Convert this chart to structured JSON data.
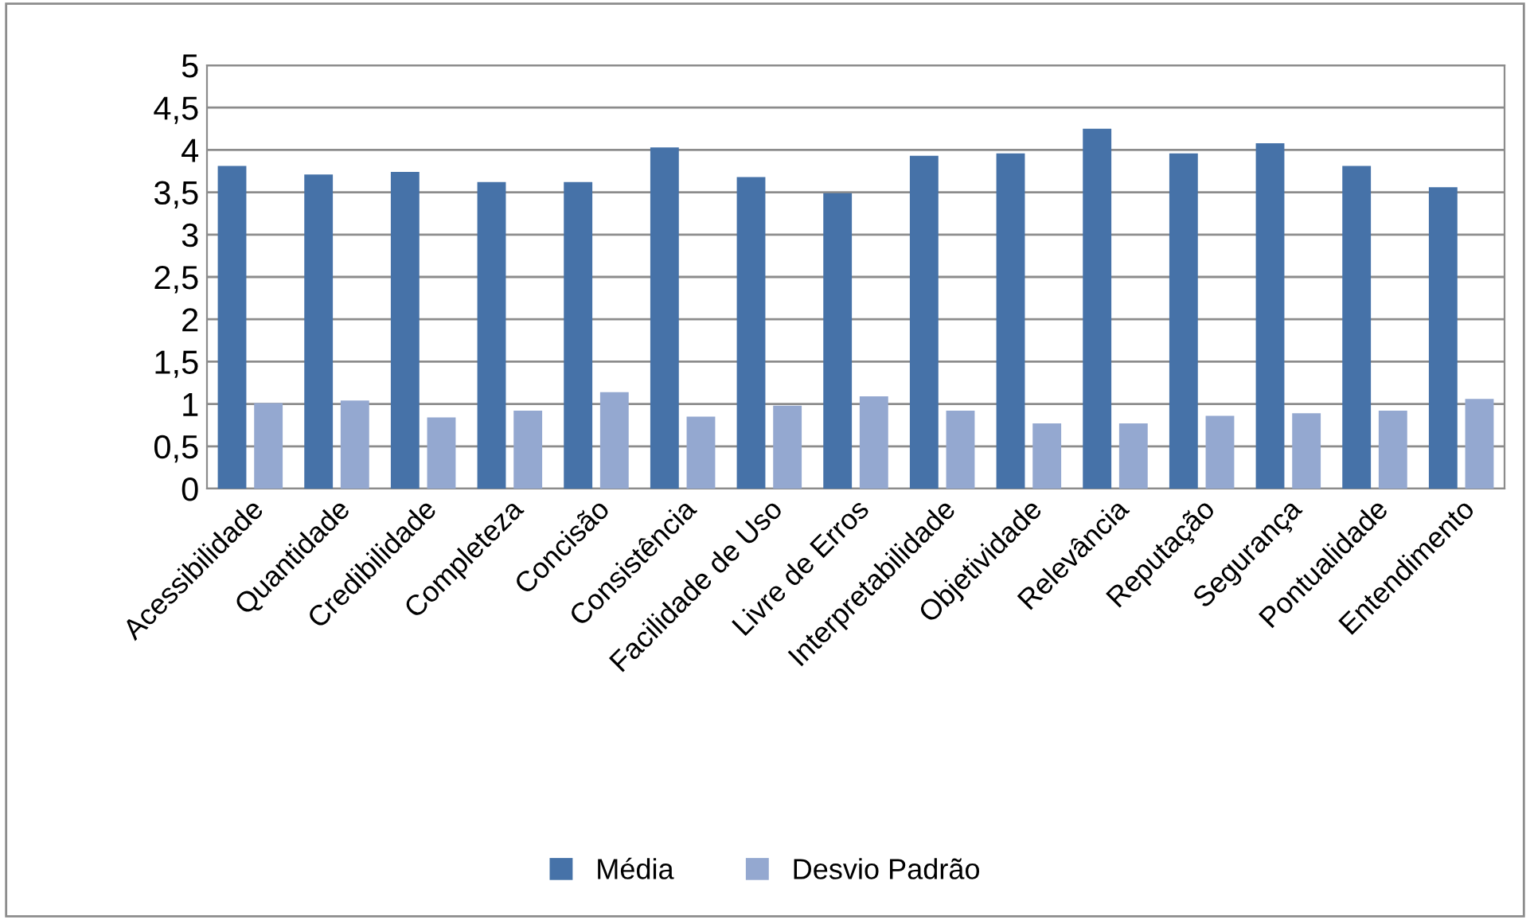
{
  "chart_data": {
    "type": "bar",
    "categories": [
      "Acessibilidade",
      "Quantidade",
      "Credibilidade",
      "Completeza",
      "Concisão",
      "Consistência",
      "Facilidade de Uso",
      "Livre de Erros",
      "Interpretabilidade",
      "Objetividade",
      "Relevância",
      "Reputação",
      "Segurança",
      "Pontualidade",
      "Entendimento"
    ],
    "series": [
      {
        "name": "Média",
        "color": "#4672a8",
        "values": [
          3.81,
          3.71,
          3.74,
          3.62,
          3.62,
          4.03,
          3.68,
          3.49,
          3.93,
          3.96,
          4.25,
          3.96,
          4.08,
          3.81,
          3.56
        ]
      },
      {
        "name": "Desvio Padrão",
        "color": "#94a8d0",
        "values": [
          1.01,
          1.04,
          0.84,
          0.92,
          1.14,
          0.85,
          0.98,
          1.09,
          0.92,
          0.77,
          0.77,
          0.86,
          0.89,
          0.92,
          1.06
        ]
      }
    ],
    "ylim": [
      0,
      5
    ],
    "yticks": [
      0,
      {
        "value": 0.5,
        "label": "0,5"
      },
      1,
      {
        "value": 1.5,
        "label": "1,5"
      },
      2,
      {
        "value": 2.5,
        "label": "2,5"
      },
      3,
      {
        "value": 3.5,
        "label": "3,5"
      },
      4,
      {
        "value": 4.5,
        "label": "4,5"
      },
      5
    ],
    "grid": "y",
    "legend": "bottom"
  }
}
